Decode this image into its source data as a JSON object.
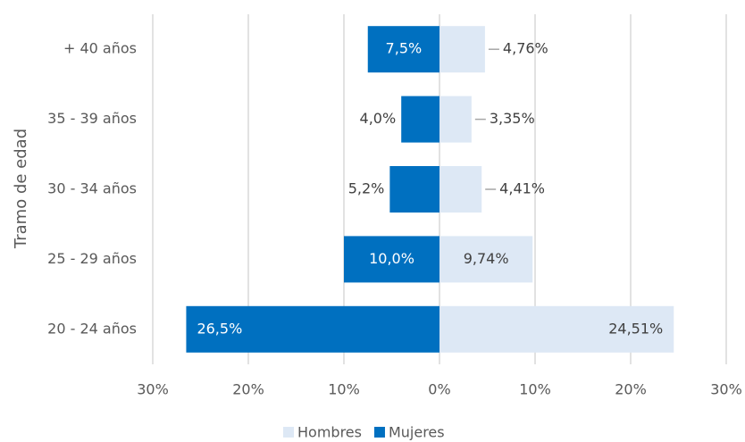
{
  "chart_data": {
    "type": "pyramid",
    "y_label": "Tramo de edad",
    "categories": [
      "+ 40 años",
      "35 - 39 años",
      "30 - 34 años",
      "25 - 29 años",
      "20 - 24 años"
    ],
    "series": [
      {
        "name": "Hombres",
        "color": "#dde8f5",
        "values": [
          4.76,
          3.35,
          4.41,
          9.74,
          24.51
        ],
        "value_labels": [
          "4,76%",
          "3,35%",
          "4,41%",
          "9,74%",
          "24,51%"
        ]
      },
      {
        "name": "Mujeres",
        "color": "#0070c0",
        "values": [
          -7.5,
          -4.0,
          -5.2,
          -10.0,
          -26.5
        ],
        "value_labels": [
          "7,5%",
          "4,0%",
          "5,2%",
          "10,0%",
          "26,5%"
        ]
      }
    ],
    "xlim": [
      -30,
      30
    ],
    "xticks": [
      {
        "value": -30,
        "label": "30%"
      },
      {
        "value": -20,
        "label": "20%"
      },
      {
        "value": -10,
        "label": "10%"
      },
      {
        "value": 0,
        "label": "0%"
      },
      {
        "value": 10,
        "label": "10%"
      },
      {
        "value": 20,
        "label": "20%"
      },
      {
        "value": 30,
        "label": "30%"
      }
    ],
    "grid": true,
    "legend": "bottom"
  }
}
